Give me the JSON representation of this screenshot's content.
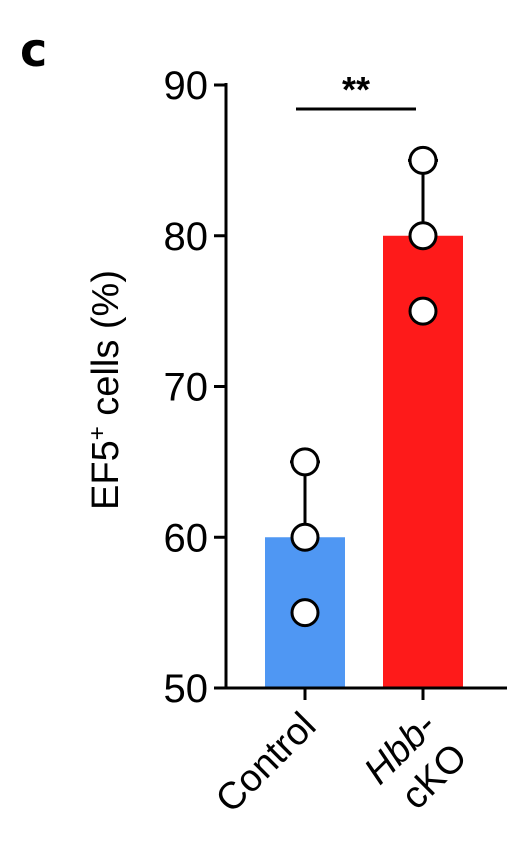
{
  "panel_label": "c",
  "chart_data": {
    "type": "bar",
    "title": "",
    "xlabel": "",
    "ylabel": "EF5⁺ cells (%)",
    "ylim": [
      50,
      90
    ],
    "yticks": [
      "50",
      "60",
      "70",
      "80",
      "90"
    ],
    "categories": [
      "Control",
      "Hbb-cKO"
    ],
    "category_lines": [
      [
        "Control"
      ],
      [
        "Hbb-",
        "cKO"
      ]
    ],
    "values": [
      60,
      80
    ],
    "errors_upper": [
      65,
      85
    ],
    "points": [
      [
        65,
        60,
        55
      ],
      [
        85,
        80,
        75
      ]
    ],
    "colors": [
      "#4f97f3",
      "#fe1a1a"
    ],
    "significance": "**",
    "grid": false
  }
}
